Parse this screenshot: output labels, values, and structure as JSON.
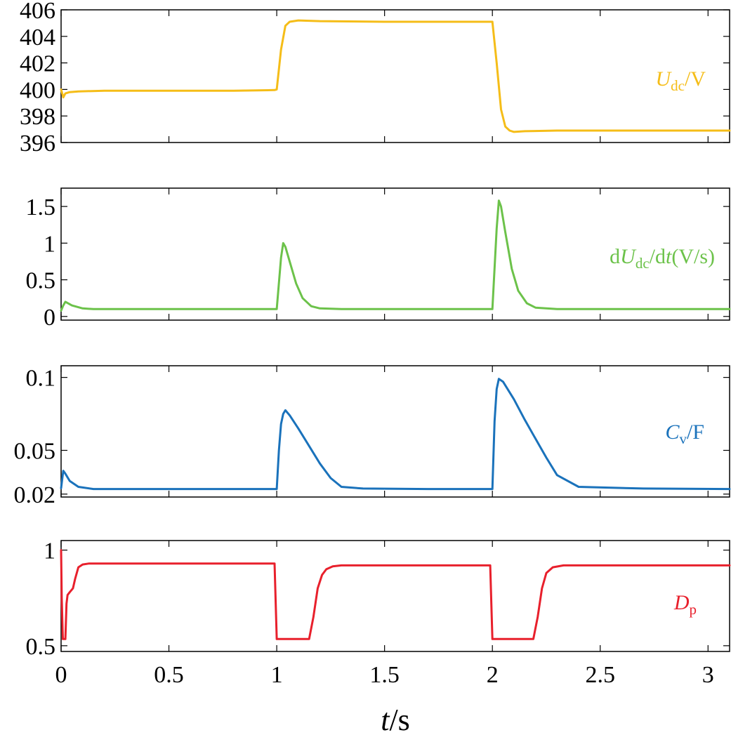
{
  "chart_data": {
    "type": "line",
    "x_axis": {
      "label_italic": "t",
      "label_sep": "/",
      "label_unit": "s",
      "xlim": [
        0,
        3.1
      ],
      "ticks": [
        0,
        0.5,
        1,
        1.5,
        2,
        2.5,
        3
      ],
      "tick_labels": [
        "0",
        "0.5",
        "1",
        "1.5",
        "2",
        "2.5",
        "3"
      ]
    },
    "panels": [
      {
        "name": "udc",
        "color": "#F5BD18",
        "label": {
          "main": "U",
          "main_italic": true,
          "sub": "dc",
          "sub_italic": false,
          "suffix": "/V",
          "suffix_parts": []
        },
        "ylim": [
          396,
          406
        ],
        "yticks": [
          396,
          398,
          400,
          402,
          404,
          406
        ],
        "ytick_labels": [
          "396",
          "398",
          "400",
          "402",
          "404",
          "406"
        ],
        "series": {
          "x": [
            0,
            0.01,
            0.02,
            0.04,
            0.08,
            0.2,
            0.5,
            0.8,
            0.99,
            1.0,
            1.02,
            1.04,
            1.06,
            1.1,
            1.2,
            1.5,
            1.8,
            1.99,
            2.0,
            2.02,
            2.04,
            2.06,
            2.08,
            2.1,
            2.15,
            2.3,
            2.6,
            3.0,
            3.1
          ],
          "y": [
            400.0,
            399.4,
            399.7,
            399.8,
            399.85,
            399.9,
            399.9,
            399.9,
            399.95,
            400.0,
            403.0,
            404.8,
            405.1,
            405.2,
            405.15,
            405.1,
            405.1,
            405.1,
            405.1,
            402.0,
            398.5,
            397.2,
            396.9,
            396.8,
            396.85,
            396.9,
            396.9,
            396.9,
            396.9
          ]
        }
      },
      {
        "name": "dudc-dt",
        "color": "#6CC24A",
        "label": {
          "main": "d",
          "main_italic": false,
          "sub": "",
          "sub_italic": false,
          "suffix": "",
          "suffix_parts": [
            {
              "t": "U",
              "italic": true,
              "sub": false
            },
            {
              "t": "dc",
              "italic": false,
              "sub": true
            },
            {
              "t": "/d",
              "italic": false,
              "sub": false
            },
            {
              "t": "t",
              "italic": true,
              "sub": false
            },
            {
              "t": "(V/s)",
              "italic": false,
              "sub": false
            }
          ]
        },
        "ylim": [
          -0.05,
          1.75
        ],
        "yticks": [
          0,
          0.5,
          1,
          1.5
        ],
        "ytick_labels": [
          "0",
          "0.5",
          "1",
          "1.5"
        ],
        "series": {
          "x": [
            0,
            0.01,
            0.02,
            0.05,
            0.1,
            0.15,
            0.3,
            0.6,
            0.99,
            1.0,
            1.02,
            1.03,
            1.04,
            1.06,
            1.09,
            1.12,
            1.16,
            1.2,
            1.3,
            1.6,
            1.99,
            2.0,
            2.02,
            2.03,
            2.04,
            2.06,
            2.09,
            2.12,
            2.16,
            2.2,
            2.3,
            2.6,
            3.1
          ],
          "y": [
            0.08,
            0.15,
            0.2,
            0.15,
            0.11,
            0.1,
            0.1,
            0.1,
            0.1,
            0.1,
            0.8,
            1.0,
            0.95,
            0.75,
            0.45,
            0.25,
            0.14,
            0.11,
            0.1,
            0.1,
            0.1,
            0.1,
            1.2,
            1.58,
            1.5,
            1.15,
            0.65,
            0.35,
            0.18,
            0.12,
            0.1,
            0.1,
            0.1
          ]
        }
      },
      {
        "name": "cv",
        "color": "#1A72BB",
        "label": {
          "main": "C",
          "main_italic": true,
          "sub": "v",
          "sub_italic": false,
          "suffix": "/F",
          "suffix_parts": []
        },
        "ylim": [
          0.018,
          0.108
        ],
        "yticks": [
          0.02,
          0.05,
          0.1
        ],
        "ytick_labels": [
          "0.02",
          "0.05",
          "0.1"
        ],
        "series": {
          "x": [
            0,
            0.01,
            0.02,
            0.04,
            0.08,
            0.15,
            0.3,
            0.6,
            0.99,
            1.0,
            1.01,
            1.02,
            1.03,
            1.04,
            1.06,
            1.1,
            1.15,
            1.2,
            1.25,
            1.3,
            1.4,
            1.7,
            1.99,
            2.0,
            2.01,
            2.02,
            2.03,
            2.05,
            2.1,
            2.15,
            2.2,
            2.25,
            2.3,
            2.4,
            2.7,
            3.1
          ],
          "y": [
            0.024,
            0.036,
            0.034,
            0.029,
            0.025,
            0.0235,
            0.0235,
            0.0235,
            0.0235,
            0.0235,
            0.05,
            0.068,
            0.075,
            0.0775,
            0.074,
            0.065,
            0.053,
            0.041,
            0.031,
            0.025,
            0.0238,
            0.0235,
            0.0235,
            0.0235,
            0.07,
            0.092,
            0.099,
            0.097,
            0.085,
            0.071,
            0.058,
            0.045,
            0.033,
            0.025,
            0.0238,
            0.0235
          ]
        }
      },
      {
        "name": "dp",
        "color": "#E8202C",
        "label": {
          "main": "D",
          "main_italic": true,
          "sub": "p",
          "sub_italic": false,
          "suffix": "",
          "suffix_parts": []
        },
        "ylim": [
          0.47,
          1.05
        ],
        "yticks": [
          0.5,
          1
        ],
        "ytick_labels": [
          "0.5",
          "1"
        ],
        "series": {
          "x": [
            0,
            0.003,
            0.008,
            0.015,
            0.02,
            0.025,
            0.03,
            0.04,
            0.055,
            0.065,
            0.08,
            0.1,
            0.13,
            0.2,
            0.5,
            0.8,
            0.99,
            1.0,
            1.02,
            1.1,
            1.15,
            1.17,
            1.19,
            1.21,
            1.23,
            1.26,
            1.3,
            1.5,
            1.8,
            1.99,
            2.0,
            2.1,
            2.19,
            2.21,
            2.23,
            2.25,
            2.28,
            2.33,
            2.5,
            3.1
          ],
          "y": [
            1.0,
            0.75,
            0.535,
            0.535,
            0.535,
            0.72,
            0.765,
            0.78,
            0.8,
            0.85,
            0.91,
            0.925,
            0.93,
            0.93,
            0.93,
            0.93,
            0.93,
            0.535,
            0.535,
            0.535,
            0.535,
            0.65,
            0.8,
            0.87,
            0.9,
            0.915,
            0.92,
            0.92,
            0.92,
            0.92,
            0.535,
            0.535,
            0.535,
            0.65,
            0.8,
            0.88,
            0.91,
            0.92,
            0.92,
            0.92
          ]
        }
      }
    ]
  }
}
